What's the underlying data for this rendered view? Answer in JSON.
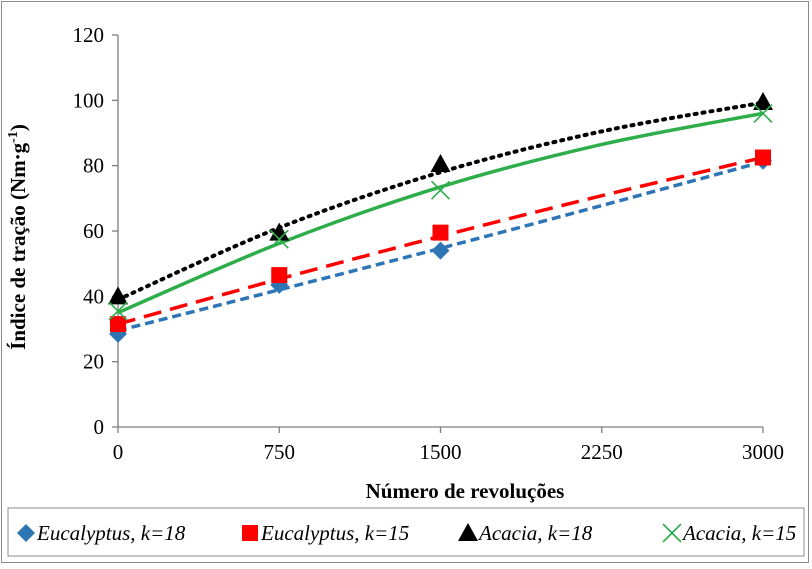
{
  "chart_data": {
    "type": "scatter",
    "title": "",
    "xlabel": "Número de revoluções",
    "ylabel_main": "Índice de tração (Nm·g",
    "ylabel_sup": "-1",
    "ylabel_end": ")",
    "xlim": [
      0,
      3000
    ],
    "ylim": [
      0,
      120
    ],
    "x_ticks": [
      "0",
      "750",
      "1500",
      "2250",
      "3000"
    ],
    "y_ticks": [
      "0",
      "20",
      "40",
      "60",
      "80",
      "100",
      "120"
    ],
    "grid": false,
    "legend_position": "bottom",
    "series": [
      {
        "name": "Eucalyptus, k=18",
        "marker": "diamond",
        "color": "#2e75b6",
        "line_style": "dashed",
        "line_color": "#2e75b6",
        "x": [
          0,
          750,
          1500,
          3000
        ],
        "y": [
          28.5,
          43.5,
          54,
          81.5
        ],
        "trend": [
          [
            0,
            29.5
          ],
          [
            750,
            42
          ],
          [
            1500,
            54.7
          ],
          [
            2250,
            67.8
          ],
          [
            3000,
            81.2
          ]
        ]
      },
      {
        "name": "Eucalyptus, k=15",
        "marker": "square",
        "color": "#ff0000",
        "line_style": "long-dash",
        "line_color": "#ff0000",
        "x": [
          0,
          750,
          1500,
          3000
        ],
        "y": [
          31.5,
          46.5,
          59.5,
          82.5
        ],
        "trend": [
          [
            0,
            31.5
          ],
          [
            750,
            45.3
          ],
          [
            1500,
            58.4
          ],
          [
            2250,
            70.8
          ],
          [
            3000,
            82.5
          ]
        ]
      },
      {
        "name": "Acacia, k=18",
        "marker": "triangle",
        "color": "#000000",
        "line_style": "dotted",
        "line_color": "#000000",
        "x": [
          0,
          750,
          1500,
          3000
        ],
        "y": [
          40,
          59.5,
          80.5,
          99.5
        ],
        "trend": [
          [
            0,
            39
          ],
          [
            750,
            61
          ],
          [
            1500,
            78
          ],
          [
            2250,
            90.5
          ],
          [
            3000,
            99.3
          ]
        ]
      },
      {
        "name": "Acacia, k=15",
        "marker": "x",
        "color": "#2ead4b",
        "line_style": "solid",
        "line_color": "#2ead4b",
        "x": [
          0,
          750,
          1500,
          3000
        ],
        "y": [
          35.5,
          57.5,
          72.5,
          96
        ],
        "trend": [
          [
            0,
            35
          ],
          [
            750,
            56.2
          ],
          [
            1500,
            73.5
          ],
          [
            2250,
            86.5
          ],
          [
            3000,
            96
          ]
        ]
      }
    ]
  }
}
